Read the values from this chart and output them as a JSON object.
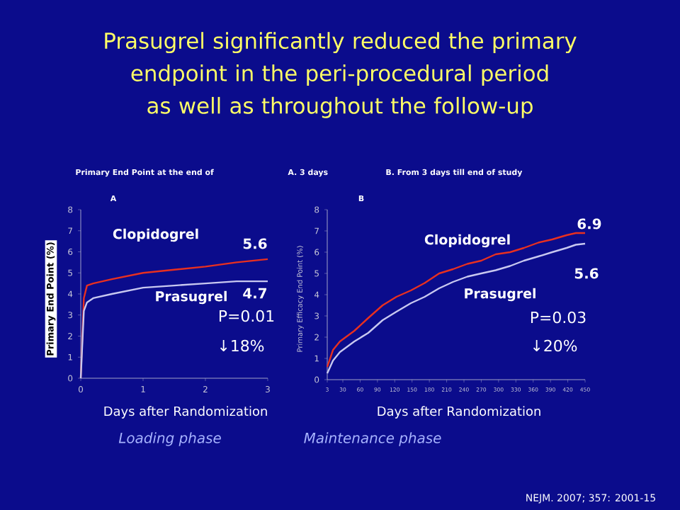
{
  "chart_data": [
    {
      "type": "line",
      "title": "Prasugrel significantly reduced the primary endpoint in the peri-procedural period as well as throughout the follow-up",
      "xlabel": "Days after Randomization",
      "ylabel": "Primary End Point (%)",
      "xlim": [
        0,
        3
      ],
      "ylim": [
        0,
        8
      ],
      "xticks": [
        0,
        1,
        2,
        3
      ],
      "yticks": [
        0,
        1,
        2,
        3,
        4,
        5,
        6,
        7,
        8
      ],
      "x": [
        0,
        0.05,
        0.1,
        0.2,
        0.5,
        1.0,
        1.5,
        2.0,
        2.5,
        3.0
      ],
      "series": [
        {
          "name": "Clopidogrel",
          "color": "#e83020",
          "values": [
            0,
            3.8,
            4.4,
            4.5,
            4.7,
            5.0,
            5.15,
            5.3,
            5.5,
            5.65
          ]
        },
        {
          "name": "Prasugrel",
          "color": "#c8c8f0",
          "values": [
            0,
            3.2,
            3.6,
            3.8,
            4.0,
            4.3,
            4.4,
            4.5,
            4.6,
            4.6
          ]
        }
      ],
      "annotations": [
        "Primary End Point at the end of",
        "A. 3 days",
        "A",
        "5.6",
        "4.7",
        "P=0.01",
        "↓18%",
        "Loading phase"
      ]
    },
    {
      "type": "line",
      "xlabel": "Days after Randomization",
      "ylabel": "Primary Efficacy End Point (%)",
      "xlim": [
        3,
        450
      ],
      "ylim": [
        0,
        8
      ],
      "xticks": [
        3,
        30,
        60,
        90,
        120,
        150,
        180,
        210,
        240,
        270,
        300,
        330,
        360,
        390,
        420,
        450
      ],
      "yticks": [
        0,
        1,
        2,
        3,
        4,
        5,
        6,
        7,
        8
      ],
      "x": [
        3,
        13,
        25,
        50,
        74,
        99,
        123,
        148,
        172,
        197,
        221,
        246,
        270,
        295,
        320,
        344,
        369,
        393,
        418,
        434,
        450
      ],
      "series": [
        {
          "name": "Clopidogrel",
          "color": "#e83020",
          "values": [
            0.6,
            1.4,
            1.8,
            2.3,
            2.9,
            3.5,
            3.9,
            4.2,
            4.55,
            5.0,
            5.2,
            5.45,
            5.6,
            5.9,
            6.0,
            6.2,
            6.45,
            6.6,
            6.8,
            6.9,
            6.9
          ]
        },
        {
          "name": "Prasugrel",
          "color": "#c8c8f0",
          "values": [
            0.3,
            0.9,
            1.3,
            1.8,
            2.2,
            2.8,
            3.2,
            3.6,
            3.9,
            4.3,
            4.6,
            4.85,
            5.0,
            5.15,
            5.35,
            5.6,
            5.8,
            6.0,
            6.2,
            6.35,
            6.4
          ]
        }
      ],
      "annotations": [
        "B. From 3 days till end of study",
        "B",
        "6.9",
        "5.6",
        "P=0.03",
        "↓20%",
        "Maintenance phase",
        "NEJM. 2007; 357: 2001-15"
      ]
    }
  ]
}
